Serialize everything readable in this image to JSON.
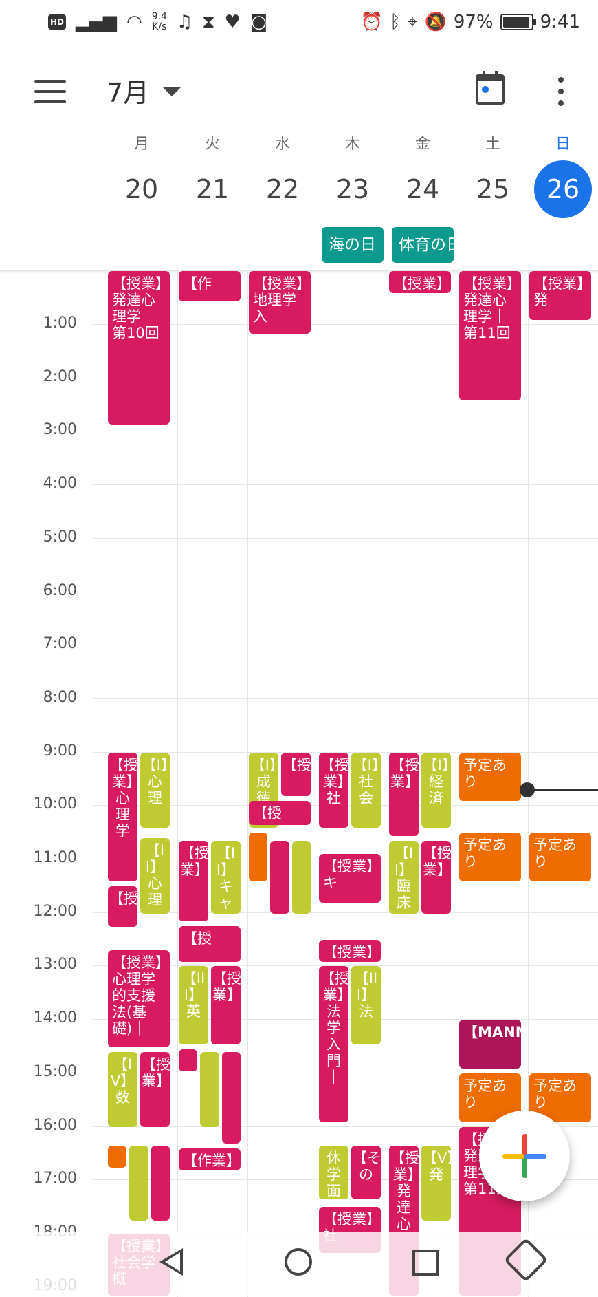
{
  "status_bar": {
    "hd": "HD",
    "speed_top": "9.4",
    "speed_bottom": "K/s",
    "left_icons": [
      "signal-icon",
      "wifi-icon",
      "music-note-icon",
      "hourglass-icon",
      "heart-icon",
      "instagram-icon"
    ],
    "right_icons": [
      "alarm-icon",
      "bluetooth-icon",
      "location-icon",
      "mute-icon"
    ],
    "battery_level": 0.97,
    "battery_text": "97%",
    "time": "9:41"
  },
  "app_bar": {
    "month": "7月"
  },
  "days": [
    {
      "dow": "月",
      "num": "20",
      "today": false
    },
    {
      "dow": "火",
      "num": "21",
      "today": false
    },
    {
      "dow": "水",
      "num": "22",
      "today": false
    },
    {
      "dow": "木",
      "num": "23",
      "today": false
    },
    {
      "dow": "金",
      "num": "24",
      "today": false
    },
    {
      "dow": "土",
      "num": "25",
      "today": false
    },
    {
      "dow": "日",
      "num": "26",
      "today": true
    }
  ],
  "all_day_events": [
    {
      "day": 3,
      "title": "海の日"
    },
    {
      "day": 4,
      "title": "体育の日"
    }
  ],
  "hours": [
    "1:00",
    "2:00",
    "3:00",
    "4:00",
    "5:00",
    "6:00",
    "7:00",
    "8:00",
    "9:00",
    "10:00",
    "11:00",
    "12:00",
    "13:00",
    "14:00",
    "15:00",
    "16:00",
    "17:00",
    "18:00",
    "19:00"
  ],
  "events": [
    {
      "day": 0,
      "start": 0,
      "end": 2.9,
      "col": 0,
      "cols": 1,
      "color": "pink",
      "text": "【授業】発達心理学｜第10回"
    },
    {
      "day": 1,
      "start": 0,
      "end": 0.6,
      "col": 0,
      "cols": 1,
      "color": "pink",
      "text": "【作"
    },
    {
      "day": 2,
      "start": 0,
      "end": 1.2,
      "col": 0,
      "cols": 1,
      "color": "pink",
      "text": "【授業】地理学入"
    },
    {
      "day": 4,
      "start": 0,
      "end": 0.45,
      "col": 0,
      "cols": 1,
      "color": "pink",
      "text": "【授業】"
    },
    {
      "day": 5,
      "start": 0,
      "end": 2.45,
      "col": 0,
      "cols": 1,
      "color": "pink",
      "text": "【授業】発達心理学｜第11回"
    },
    {
      "day": 6,
      "start": 0,
      "end": 0.95,
      "col": 0,
      "cols": 1,
      "color": "pink",
      "text": "【授業】発"
    },
    {
      "day": 0,
      "start": 9,
      "end": 11.45,
      "col": 0,
      "cols": 2,
      "color": "pink",
      "v": true,
      "text": "【授業】心理学"
    },
    {
      "day": 0,
      "start": 9,
      "end": 10.45,
      "col": 1,
      "cols": 2,
      "color": "lime",
      "v": true,
      "text": "【I】心理"
    },
    {
      "day": 0,
      "start": 10.6,
      "end": 12.05,
      "col": 1,
      "cols": 2,
      "color": "lime",
      "v": true,
      "text": "【II】心理"
    },
    {
      "day": 0,
      "start": 11.5,
      "end": 12.3,
      "col": 0,
      "cols": 2,
      "color": "pink",
      "v": true,
      "text": "【授"
    },
    {
      "day": 0,
      "start": 12.7,
      "end": 14.55,
      "col": 0,
      "cols": 1,
      "color": "pink",
      "text": "【授業】心理学的支援法(基礎)｜"
    },
    {
      "day": 0,
      "start": 14.6,
      "end": 16.05,
      "col": 0,
      "cols": 2,
      "color": "lime",
      "v": true,
      "text": "【IV】数"
    },
    {
      "day": 0,
      "start": 14.6,
      "end": 16.05,
      "col": 1,
      "cols": 2,
      "color": "pink",
      "v": true,
      "text": "【授業】"
    },
    {
      "day": 0,
      "start": 16.35,
      "end": 16.8,
      "col": 0,
      "cols": 3,
      "color": "orange",
      "v": true,
      "text": ""
    },
    {
      "day": 0,
      "start": 16.35,
      "end": 17.8,
      "col": 1,
      "cols": 3,
      "color": "lime",
      "v": true,
      "text": ""
    },
    {
      "day": 0,
      "start": 16.35,
      "end": 17.8,
      "col": 2,
      "cols": 3,
      "color": "pink",
      "v": true,
      "text": ""
    },
    {
      "day": 0,
      "start": 18,
      "end": 19.2,
      "col": 0,
      "cols": 1,
      "color": "pink",
      "text": "【授業】社会学概"
    },
    {
      "day": 1,
      "start": 10.65,
      "end": 12.2,
      "col": 0,
      "cols": 2,
      "color": "pink",
      "v": true,
      "text": "【授業】"
    },
    {
      "day": 1,
      "start": 10.65,
      "end": 12.05,
      "col": 1,
      "cols": 2,
      "color": "lime",
      "v": true,
      "text": "【II】キャ"
    },
    {
      "day": 1,
      "start": 12.25,
      "end": 12.95,
      "col": 0,
      "cols": 1,
      "color": "pink",
      "text": "【授"
    },
    {
      "day": 1,
      "start": 13,
      "end": 14.5,
      "col": 0,
      "cols": 2,
      "color": "lime",
      "v": true,
      "text": "【III】英"
    },
    {
      "day": 1,
      "start": 13,
      "end": 14.5,
      "col": 1,
      "cols": 2,
      "color": "pink",
      "v": true,
      "text": "【授業】"
    },
    {
      "day": 1,
      "start": 14.55,
      "end": 15,
      "col": 0,
      "cols": 3,
      "color": "pink",
      "v": true,
      "text": ""
    },
    {
      "day": 1,
      "start": 14.6,
      "end": 16.05,
      "col": 1,
      "cols": 3,
      "color": "lime",
      "v": true,
      "text": ""
    },
    {
      "day": 1,
      "start": 14.6,
      "end": 16.35,
      "col": 2,
      "cols": 3,
      "color": "pink",
      "v": true,
      "text": ""
    },
    {
      "day": 1,
      "start": 16.4,
      "end": 16.85,
      "col": 0,
      "cols": 1,
      "color": "pink",
      "text": "【作業】"
    },
    {
      "day": 2,
      "start": 9,
      "end": 10.45,
      "col": 0,
      "cols": 2,
      "color": "lime",
      "v": true,
      "text": "【I】成徳"
    },
    {
      "day": 2,
      "start": 9,
      "end": 9.85,
      "col": 1,
      "cols": 2,
      "color": "pink",
      "v": true,
      "text": "【授"
    },
    {
      "day": 2,
      "start": 9.9,
      "end": 10.4,
      "col": 0,
      "cols": 1,
      "color": "pink",
      "text": "【授"
    },
    {
      "day": 2,
      "start": 10.5,
      "end": 11.45,
      "col": 0,
      "cols": 3,
      "color": "orange",
      "v": true,
      "text": ""
    },
    {
      "day": 2,
      "start": 10.65,
      "end": 12.05,
      "col": 1,
      "cols": 3,
      "color": "pink",
      "v": true,
      "text": ""
    },
    {
      "day": 2,
      "start": 10.65,
      "end": 12.05,
      "col": 2,
      "cols": 3,
      "color": "lime",
      "v": true,
      "text": ""
    },
    {
      "day": 3,
      "start": 9,
      "end": 10.45,
      "col": 0,
      "cols": 2,
      "color": "pink",
      "v": true,
      "text": "【授業】社"
    },
    {
      "day": 3,
      "start": 9,
      "end": 10.45,
      "col": 1,
      "cols": 2,
      "color": "lime",
      "v": true,
      "text": "【I】社会"
    },
    {
      "day": 3,
      "start": 10.9,
      "end": 11.85,
      "col": 0,
      "cols": 1,
      "color": "pink",
      "text": "【授業】キ"
    },
    {
      "day": 3,
      "start": 12.5,
      "end": 12.95,
      "col": 0,
      "cols": 1,
      "color": "pink",
      "text": "【授業】"
    },
    {
      "day": 3,
      "start": 13,
      "end": 15.95,
      "col": 0,
      "cols": 2,
      "color": "pink",
      "v": true,
      "text": "【授業】法学入門｜"
    },
    {
      "day": 3,
      "start": 13,
      "end": 14.5,
      "col": 1,
      "cols": 2,
      "color": "lime",
      "v": true,
      "text": "【III】法"
    },
    {
      "day": 3,
      "start": 16.35,
      "end": 17.4,
      "col": 0,
      "cols": 2,
      "color": "lime",
      "v": true,
      "text": "休学面"
    },
    {
      "day": 3,
      "start": 16.35,
      "end": 17.4,
      "col": 1,
      "cols": 2,
      "color": "pink",
      "v": true,
      "text": "【その"
    },
    {
      "day": 3,
      "start": 17.5,
      "end": 18.4,
      "col": 0,
      "cols": 1,
      "color": "pink",
      "text": "【授業】社"
    },
    {
      "day": 4,
      "start": 9,
      "end": 10.6,
      "col": 0,
      "cols": 2,
      "color": "pink",
      "v": true,
      "text": "【授業】"
    },
    {
      "day": 4,
      "start": 9,
      "end": 10.45,
      "col": 1,
      "cols": 2,
      "color": "lime",
      "v": true,
      "text": "【I】経済"
    },
    {
      "day": 4,
      "start": 10.65,
      "end": 12.05,
      "col": 0,
      "cols": 2,
      "color": "lime",
      "v": true,
      "text": "【II】臨床"
    },
    {
      "day": 4,
      "start": 10.65,
      "end": 12.05,
      "col": 1,
      "cols": 2,
      "color": "pink",
      "v": true,
      "text": "【授業】"
    },
    {
      "day": 4,
      "start": 16.35,
      "end": 19.2,
      "col": 0,
      "cols": 2,
      "color": "pink",
      "v": true,
      "text": "【授業】発達心"
    },
    {
      "day": 4,
      "start": 16.35,
      "end": 17.8,
      "col": 1,
      "cols": 2,
      "color": "lime",
      "v": true,
      "text": "【V】発"
    },
    {
      "day": 5,
      "start": 9,
      "end": 9.95,
      "col": 0,
      "cols": 1,
      "color": "orange",
      "text": "予定あり"
    },
    {
      "day": 5,
      "start": 10.5,
      "end": 11.45,
      "col": 0,
      "cols": 1,
      "color": "orange",
      "text": "予定あり"
    },
    {
      "day": 5,
      "start": 14,
      "end": 14.95,
      "col": 0,
      "cols": 1,
      "color": "maroon",
      "text": "【MANNABASE"
    },
    {
      "day": 5,
      "start": 15,
      "end": 15.95,
      "col": 0,
      "cols": 1,
      "color": "orange",
      "text": "予定あり"
    },
    {
      "day": 5,
      "start": 16,
      "end": 19.2,
      "col": 0,
      "cols": 1,
      "color": "pink",
      "text": "【授業】発達心理学｜第11回"
    },
    {
      "day": 6,
      "start": 10.5,
      "end": 11.45,
      "col": 0,
      "cols": 1,
      "color": "orange",
      "text": "予定あり"
    },
    {
      "day": 6,
      "start": 15,
      "end": 15.95,
      "col": 0,
      "cols": 1,
      "color": "orange",
      "text": "予定あり"
    }
  ],
  "now_hour": 9.7,
  "now_day": 6,
  "fab_icon": "plus-icon",
  "nav_icons": [
    "back-icon",
    "home-icon",
    "recent-apps-icon",
    "rotate-icon"
  ]
}
